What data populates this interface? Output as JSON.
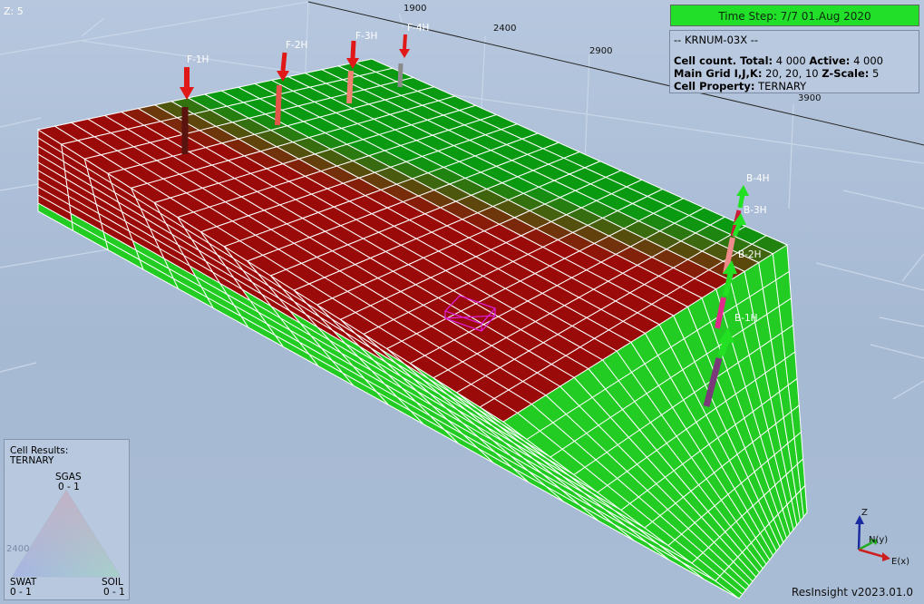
{
  "app": {
    "version": "ResInsight v2023.01.0"
  },
  "view": {
    "z_scale_label": "Z: 5",
    "time_step": "Time Step: 7/7 01.Aug 2020",
    "axis_ticks": [
      "1900",
      "2400",
      "2900",
      "3900",
      "2400"
    ]
  },
  "info": {
    "case_name": "-- KRNUM-03X --",
    "cell_count_label": "Cell count. Total:",
    "cell_count_total": "4 000",
    "active_label": "Active:",
    "active_count": "4 000",
    "grid_label": "Main Grid I,J,K:",
    "grid_dims": "20, 20, 10",
    "zscale_label": "Z-Scale:",
    "zscale_value": "5",
    "property_label": "Cell Property:",
    "property_value": "TERNARY"
  },
  "legend": {
    "title_line1": "Cell Results:",
    "title_line2": "TERNARY",
    "top_name": "SGAS",
    "top_range": "0 - 1",
    "left_name": "SWAT",
    "left_range": "0 - 1",
    "right_name": "SOIL",
    "right_range": "0 - 1"
  },
  "wells": {
    "producers": [
      "F-1H",
      "F-2H",
      "F-3H",
      "F-4H"
    ],
    "injectors": [
      "B-4H",
      "B-3H",
      "B-2H",
      "B-1H"
    ]
  },
  "axes": {
    "z": "Z",
    "n": "N(y)",
    "e": "E(x)"
  },
  "colors": {
    "oil_red": "#9a0a08",
    "water_green": "#22cc22",
    "gas_green": "#0a9a12",
    "timestep_bg": "#22e02a"
  }
}
